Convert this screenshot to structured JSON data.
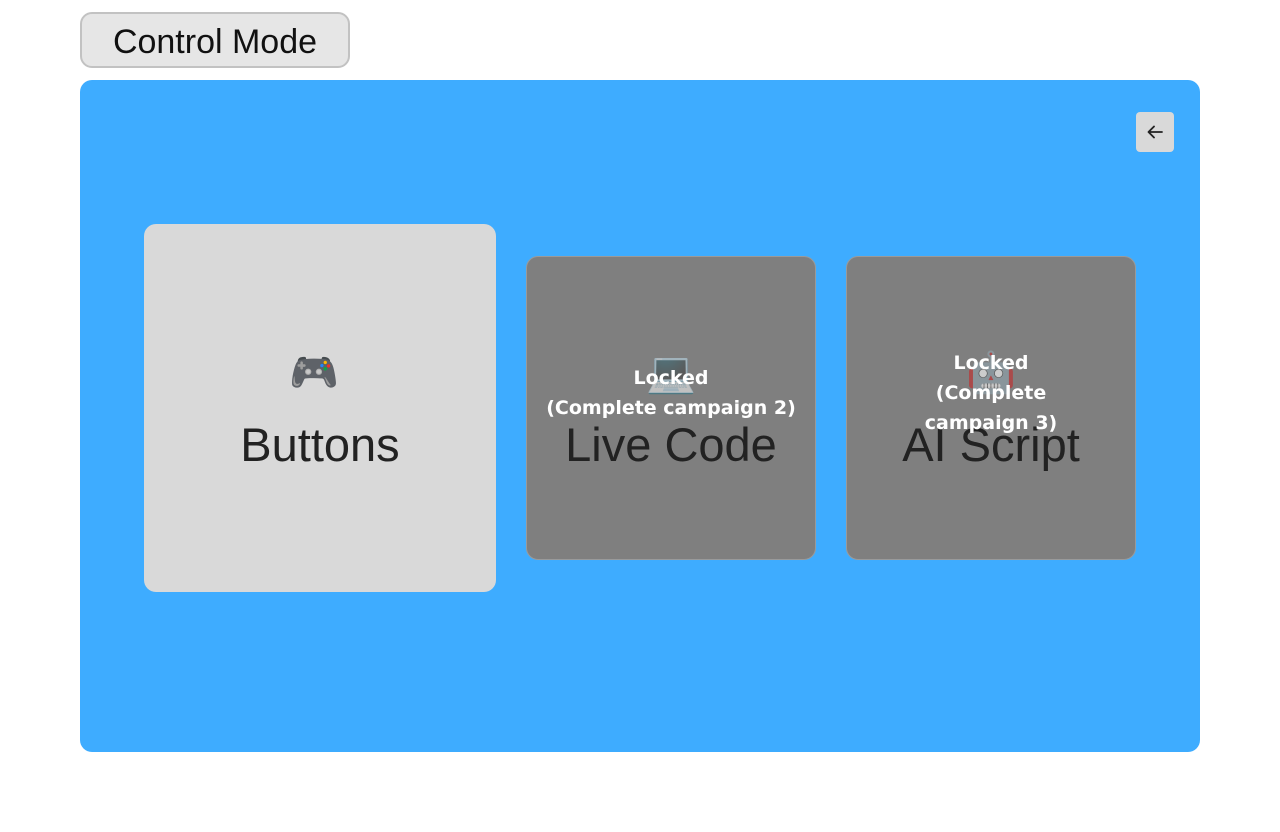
{
  "header": {
    "title": "Control Mode"
  },
  "cards": [
    {
      "icon": "🎮",
      "label": "Buttons"
    },
    {
      "icon": "💻",
      "label": "Live Code",
      "lock_title": "Locked",
      "lock_hint": "(Complete campaign 2)"
    },
    {
      "icon": "🤖",
      "label": "AI Script",
      "lock_title": "Locked",
      "lock_hint": "(Complete campaign 3)"
    }
  ]
}
